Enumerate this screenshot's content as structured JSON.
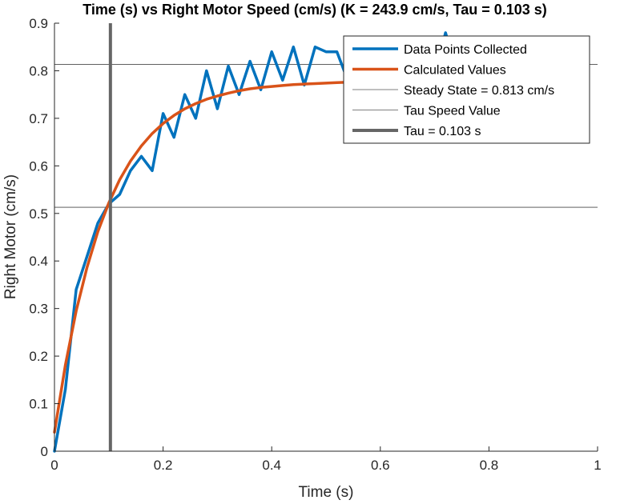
{
  "chart_data": {
    "type": "line",
    "title": "Time (s) vs Right Motor Speed (cm/s) (K = 243.9 cm/s, Tau = 0.103 s)",
    "xlabel": "Time (s)",
    "ylabel": "Right Motor (cm/s)",
    "xlim": [
      0,
      1
    ],
    "ylim": [
      0,
      0.9
    ],
    "xticks": [
      0,
      0.2,
      0.4,
      0.6,
      0.8,
      1
    ],
    "xtick_labels": [
      "0",
      "0.2",
      "0.4",
      "0.6",
      "0.8",
      "1"
    ],
    "yticks": [
      0,
      0.1,
      0.2,
      0.3,
      0.4,
      0.5,
      0.6,
      0.7,
      0.8,
      0.9
    ],
    "ytick_labels": [
      "0",
      "0.1",
      "0.2",
      "0.3",
      "0.4",
      "0.5",
      "0.6",
      "0.7",
      "0.8",
      "0.9"
    ],
    "grid": false,
    "legend_position": "top-right",
    "series": [
      {
        "name": "Data Points Collected",
        "color": "#0072BD",
        "x": [
          0,
          0.02,
          0.04,
          0.06,
          0.08,
          0.1,
          0.12,
          0.14,
          0.16,
          0.18,
          0.2,
          0.22,
          0.24,
          0.26,
          0.28,
          0.3,
          0.32,
          0.34,
          0.36,
          0.38,
          0.4,
          0.42,
          0.44,
          0.46,
          0.48,
          0.5,
          0.52,
          0.54,
          0.56,
          0.58,
          0.6,
          0.62,
          0.64,
          0.66,
          0.68,
          0.7,
          0.72,
          0.74,
          0.76,
          0.78,
          0.8,
          0.82,
          0.84,
          0.86,
          0.88,
          0.9,
          0.92,
          0.94,
          0.96,
          0.98
        ],
        "y": [
          0,
          0.13,
          0.34,
          0.41,
          0.48,
          0.52,
          0.54,
          0.59,
          0.62,
          0.59,
          0.71,
          0.66,
          0.75,
          0.7,
          0.8,
          0.72,
          0.81,
          0.75,
          0.82,
          0.76,
          0.84,
          0.78,
          0.85,
          0.77,
          0.85,
          0.84,
          0.84,
          0.78,
          0.82,
          0.8,
          0.83,
          0.79,
          0.83,
          0.8,
          0.84,
          0.79,
          0.88,
          0.8,
          0.84,
          0.79,
          0.84,
          0.8,
          0.83,
          0.81,
          0.83,
          0.8,
          0.83,
          0.8,
          0.82,
          0.79
        ]
      },
      {
        "name": "Calculated Values",
        "color": "#D95319",
        "x": [
          0,
          0.02,
          0.04,
          0.06,
          0.08,
          0.1,
          0.12,
          0.14,
          0.16,
          0.18,
          0.2,
          0.22,
          0.24,
          0.26,
          0.28,
          0.3,
          0.32,
          0.34,
          0.36,
          0.38,
          0.4,
          0.42,
          0.44,
          0.46,
          0.48,
          0.5,
          0.52,
          0.54,
          0.56,
          0.58,
          0.6,
          0.62,
          0.64,
          0.66,
          0.68,
          0.7,
          0.72,
          0.74,
          0.76,
          0.78,
          0.8,
          0.82,
          0.84,
          0.86,
          0.88,
          0.9,
          0.92,
          0.94,
          0.96,
          0.98
        ],
        "y": [
          0.04,
          0.181,
          0.295,
          0.387,
          0.462,
          0.522,
          0.571,
          0.61,
          0.642,
          0.668,
          0.689,
          0.706,
          0.72,
          0.731,
          0.74,
          0.747,
          0.753,
          0.758,
          0.762,
          0.765,
          0.767,
          0.769,
          0.771,
          0.772,
          0.773,
          0.774,
          0.775,
          0.776,
          0.776,
          0.776,
          0.777,
          0.777,
          0.777,
          0.777,
          0.778,
          0.778,
          0.778,
          0.778,
          0.778,
          0.778,
          0.778,
          0.778,
          0.778,
          0.778,
          0.778,
          0.778,
          0.778,
          0.778,
          0.778,
          0.778
        ]
      },
      {
        "name": "Steady State = 0.813 cm/s",
        "color": "#000000",
        "value": 0.813
      },
      {
        "name": "Tau Speed Value",
        "color": "#000000",
        "value": 0.513
      },
      {
        "name": "Tau = 0.103 s",
        "color": "#666666",
        "value": 0.103
      }
    ]
  }
}
